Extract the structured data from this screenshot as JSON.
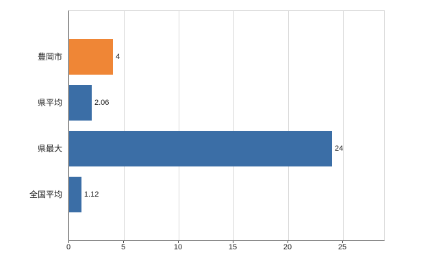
{
  "chart_data": {
    "type": "bar",
    "orientation": "horizontal",
    "title": "",
    "xlabel": "",
    "ylabel": "",
    "categories": [
      "豊岡市",
      "県平均",
      "県最大",
      "全国平均"
    ],
    "values": [
      4,
      2.06,
      24,
      1.12
    ],
    "value_labels": [
      "4",
      "2.06",
      "24",
      "1.12"
    ],
    "bar_colors": [
      "#ef8636",
      "#3b6ea6",
      "#3b6ea6",
      "#3b6ea6"
    ],
    "xlim": [
      0,
      28.75
    ],
    "ticks": [
      0,
      5,
      10,
      15,
      20,
      25
    ],
    "grid": "vertical",
    "legend": "none",
    "accent_orange": "#ef8636",
    "accent_blue": "#3b6ea6",
    "gridline_color": "#d9d9d9",
    "axis_color": "#404040",
    "text_color": "#1a1a1a"
  }
}
